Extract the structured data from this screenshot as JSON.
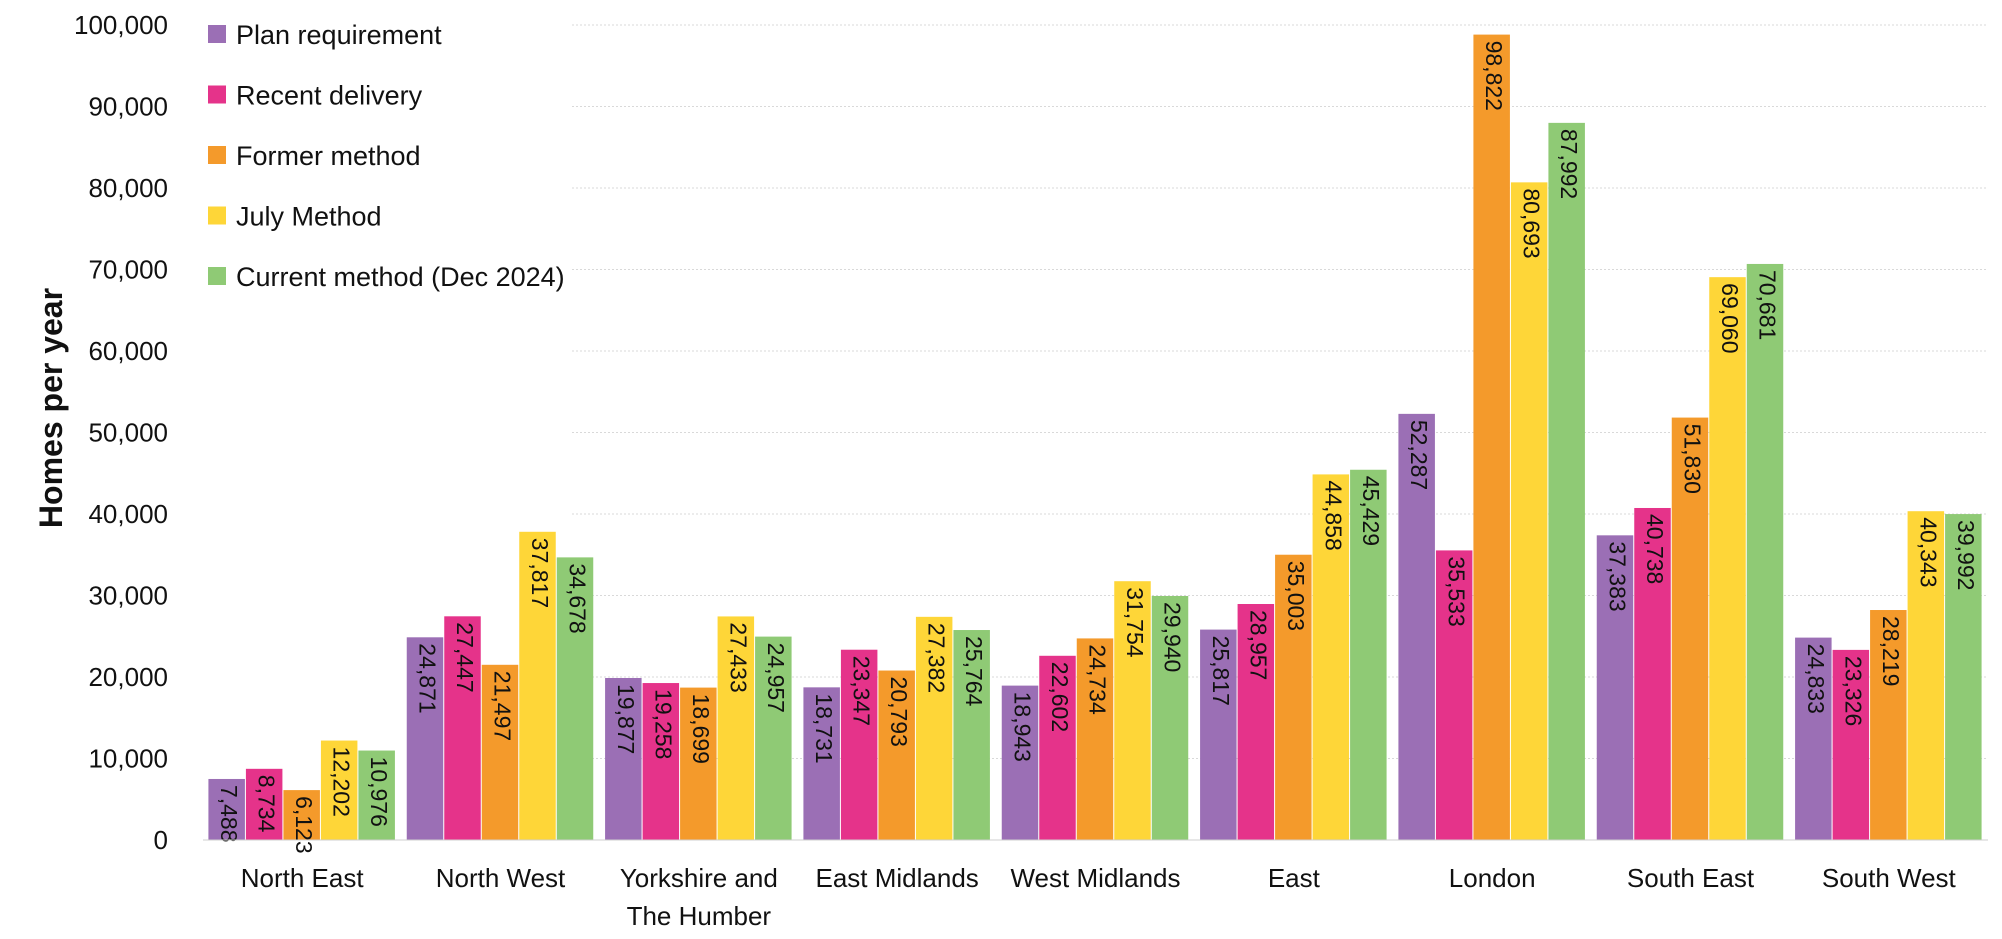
{
  "chart_data": {
    "type": "bar",
    "title": "",
    "xlabel": "",
    "ylabel": "Homes per year",
    "ylim": [
      0,
      100000
    ],
    "yticks": [
      0,
      10000,
      20000,
      30000,
      40000,
      50000,
      60000,
      70000,
      80000,
      90000,
      100000
    ],
    "ytick_labels": [
      "0",
      "10,000",
      "20,000",
      "30,000",
      "40,000",
      "50,000",
      "60,000",
      "70,000",
      "80,000",
      "90,000",
      "100,000"
    ],
    "grid": true,
    "legend_position": "top-left",
    "categories": [
      "North East",
      "North West",
      "Yorkshire and The Humber",
      "East Midlands",
      "West Midlands",
      "East",
      "London",
      "South East",
      "South West"
    ],
    "category_lines": [
      [
        "North East"
      ],
      [
        "North West"
      ],
      [
        "Yorkshire and",
        "The Humber"
      ],
      [
        "East Midlands"
      ],
      [
        "West Midlands"
      ],
      [
        "East"
      ],
      [
        "London"
      ],
      [
        "South East"
      ],
      [
        "South West"
      ]
    ],
    "series": [
      {
        "name": "Plan requirement",
        "color": "#9b6fb5",
        "values": [
          7488,
          24871,
          19877,
          18731,
          18943,
          25817,
          52287,
          37383,
          24833
        ],
        "labels": [
          "7,488",
          "24,871",
          "19,877",
          "18,731",
          "18,943",
          "25,817",
          "52,287",
          "37,383",
          "24,833"
        ]
      },
      {
        "name": "Recent delivery",
        "color": "#e5338a",
        "values": [
          8734,
          27447,
          19258,
          23347,
          22602,
          28957,
          35533,
          40738,
          23326
        ],
        "labels": [
          "8,734",
          "27,447",
          "19,258",
          "23,347",
          "22,602",
          "28,957",
          "35,533",
          "40,738",
          "23,326"
        ]
      },
      {
        "name": "Former method",
        "color": "#f49a2b",
        "values": [
          6123,
          21497,
          18699,
          20793,
          24734,
          35003,
          98822,
          51830,
          28219
        ],
        "labels": [
          "6,123",
          "21,497",
          "18,699",
          "20,793",
          "24,734",
          "35,003",
          "98,822",
          "51,830",
          "28,219"
        ]
      },
      {
        "name": "July Method",
        "color": "#fed638",
        "values": [
          12202,
          37817,
          27433,
          27382,
          31754,
          44858,
          80693,
          69060,
          40343
        ],
        "labels": [
          "12,202",
          "37,817",
          "27,433",
          "27,382",
          "31,754",
          "44,858",
          "80,693",
          "69,060",
          "40,343"
        ]
      },
      {
        "name": "Current method (Dec 2024)",
        "color": "#8fca75",
        "values": [
          10976,
          34678,
          24957,
          25764,
          29940,
          45429,
          87992,
          70681,
          39992
        ],
        "labels": [
          "10,976",
          "34,678",
          "24,957",
          "25,764",
          "29,940",
          "45,429",
          "87,992",
          "70,681",
          "39,992"
        ]
      }
    ]
  }
}
